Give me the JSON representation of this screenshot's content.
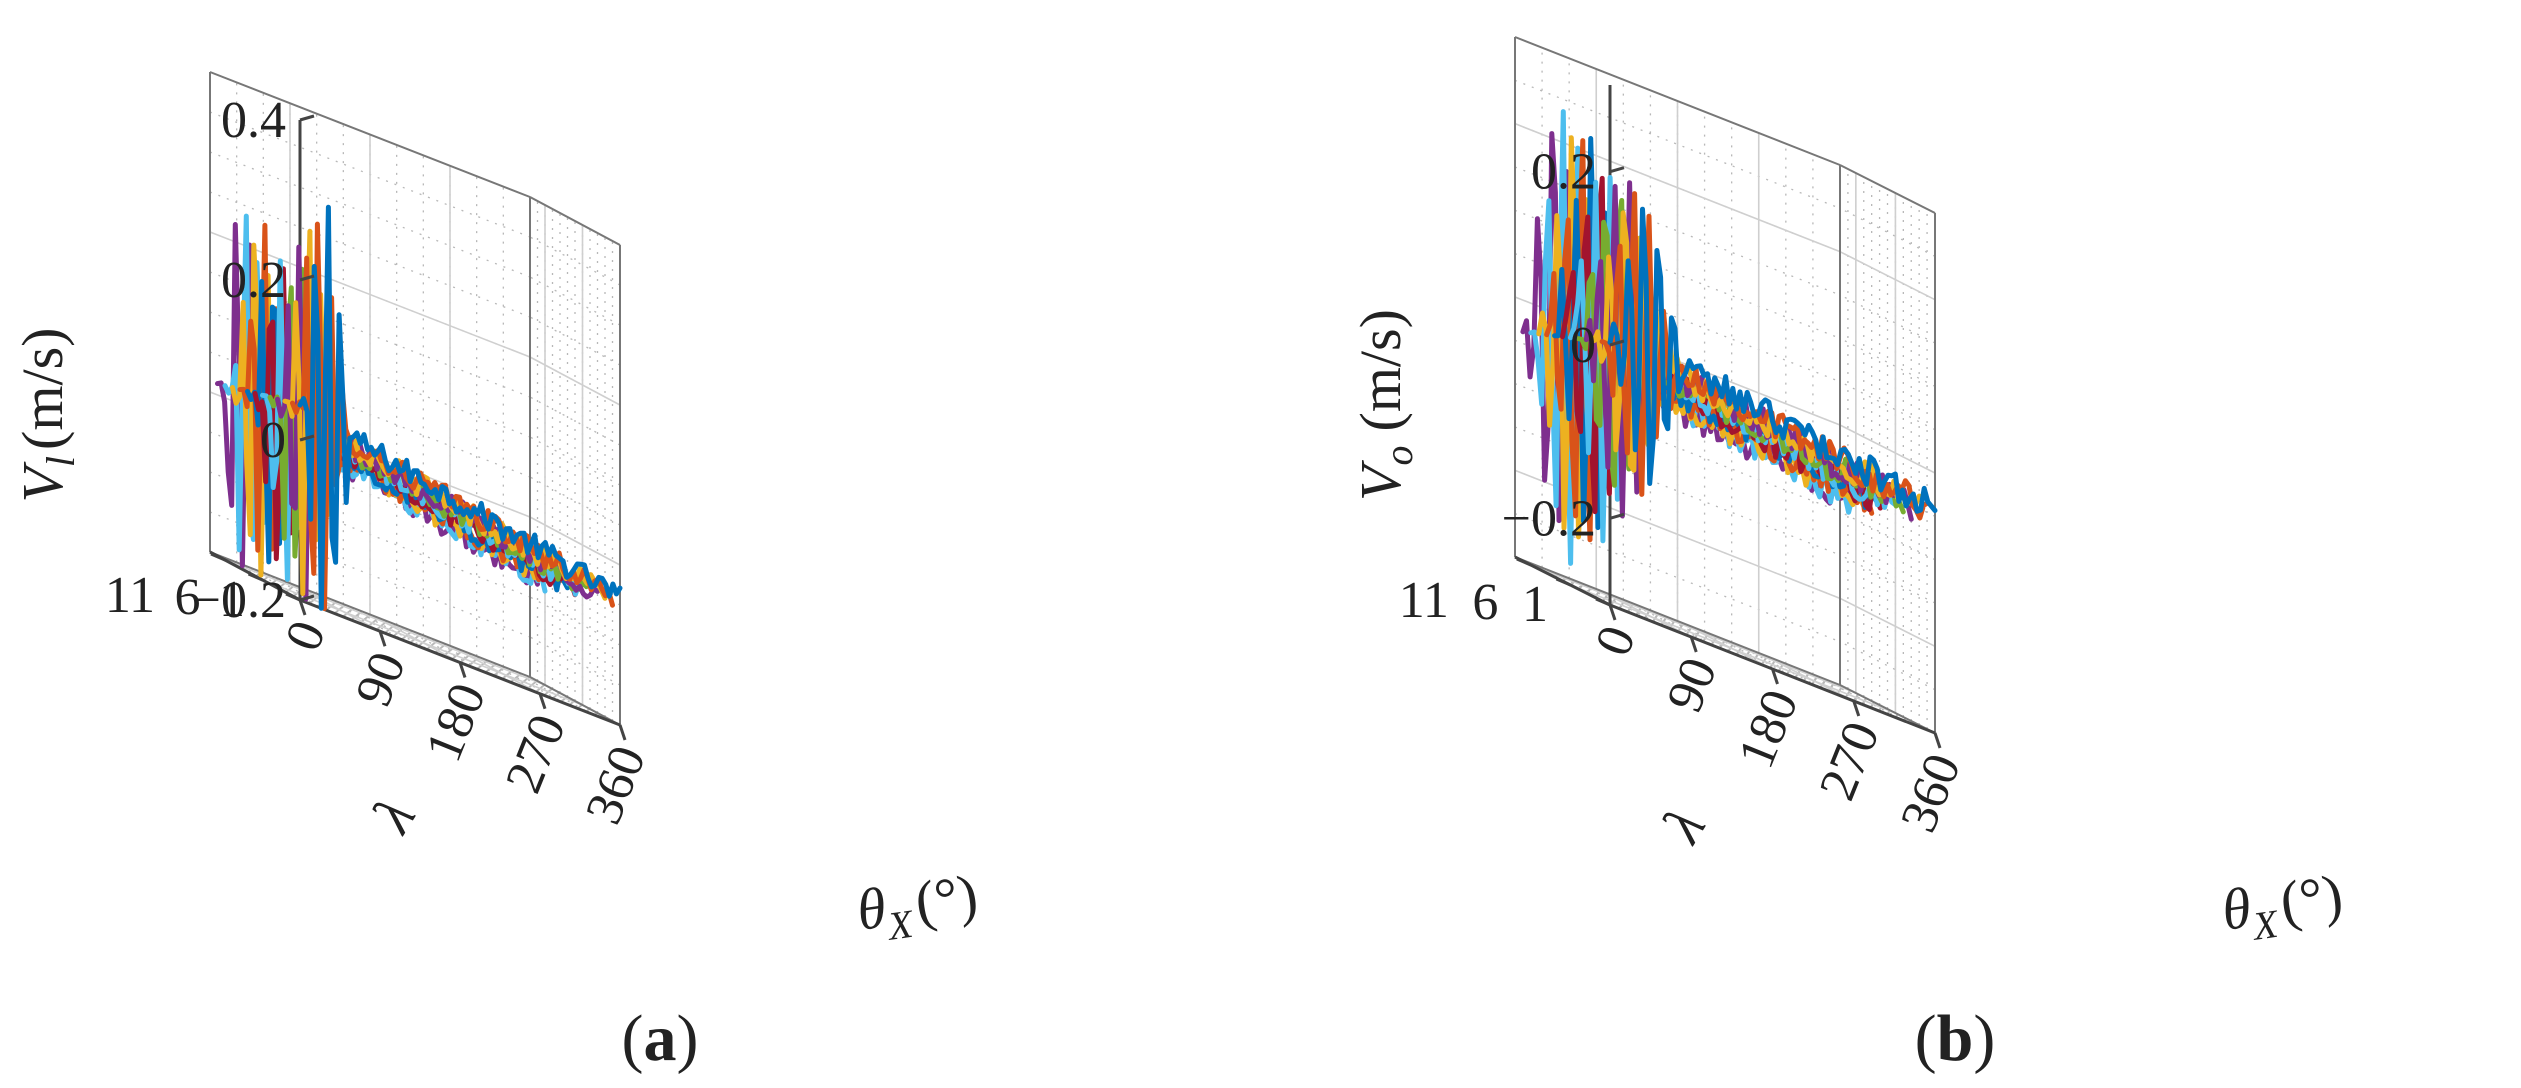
{
  "chart_data": [
    {
      "type": "line",
      "projection": "3d",
      "panel_label": "(a)",
      "zlabel": "V_l (m/s)",
      "zlabel_main": "V",
      "zlabel_sub": "l",
      "zlabel_units": "(m/s)",
      "xlabel_main": "θ",
      "xlabel_sub": "X",
      "xlabel_units": "(°)",
      "ylabel": "λ",
      "x_ticks": [
        "0",
        "90",
        "180",
        "270",
        "360"
      ],
      "y_ticks": [
        "1",
        "6",
        "11"
      ],
      "z_ticks": [
        "0.4",
        "0.2",
        "0",
        "−0.2"
      ],
      "xlim": [
        0,
        360
      ],
      "ylim": [
        1,
        13
      ],
      "zlim": [
        -0.2,
        0.4
      ],
      "grid": true,
      "series_count": 12,
      "colors": [
        "#0072BD",
        "#D95319",
        "#EDB120",
        "#7E2F8E",
        "#77AC30",
        "#4DBEEE",
        "#A2142F",
        "#0072BD",
        "#D95319",
        "#EDB120",
        "#4DBEEE",
        "#7E2F8E"
      ],
      "peak_amplitudes": [
        0.3,
        0.28,
        0.26,
        0.24,
        0.22,
        0.21,
        0.2,
        0.21,
        0.22,
        0.24,
        0.25,
        0.27
      ]
    },
    {
      "type": "line",
      "projection": "3d",
      "panel_label": "(b)",
      "zlabel": "V_o (m/s)",
      "zlabel_main": "V",
      "zlabel_sub": "o",
      "zlabel_units": "(m/s)",
      "xlabel_main": "θ",
      "xlabel_sub": "X",
      "xlabel_units": "(°)",
      "ylabel": "λ",
      "x_ticks": [
        "0",
        "90",
        "180",
        "270",
        "360"
      ],
      "y_ticks": [
        "1",
        "6",
        "11"
      ],
      "z_ticks": [
        "0.2",
        "0",
        "−0.2"
      ],
      "xlim": [
        0,
        360
      ],
      "ylim": [
        1,
        13
      ],
      "zlim": [
        -0.3,
        0.3
      ],
      "grid": true,
      "series_count": 12,
      "colors": [
        "#0072BD",
        "#D95319",
        "#EDB120",
        "#7E2F8E",
        "#77AC30",
        "#4DBEEE",
        "#A2142F",
        "#0072BD",
        "#D95319",
        "#EDB120",
        "#4DBEEE",
        "#7E2F8E"
      ],
      "peak_amplitudes": [
        0.18,
        0.18,
        0.19,
        0.2,
        0.21,
        0.22,
        0.23,
        0.24,
        0.25,
        0.26,
        0.27,
        0.28
      ]
    }
  ]
}
